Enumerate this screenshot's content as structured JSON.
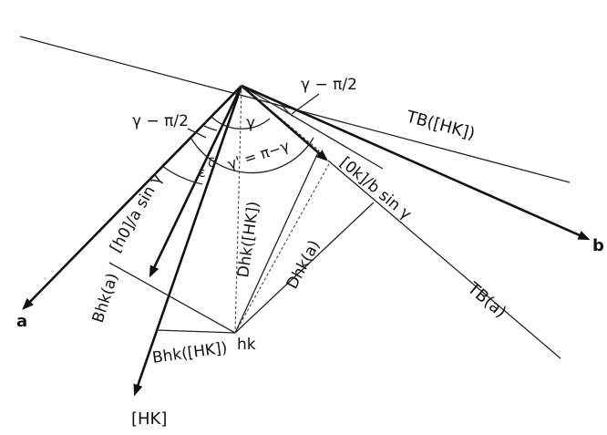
{
  "labels": {
    "gamma_minus_pi2_top": "γ − π/2",
    "gamma_minus_pi2_left": "γ − π/2",
    "gamma": "γ",
    "gamma_prime": "γ' = π−γ",
    "epsilon": "ε",
    "delta": "δ",
    "tb_hk": "TB([HK])",
    "tb_a": "TB(a)",
    "h0_over_a": "[h0]/a sin γ",
    "ok_over_b": "[0k]/b sin γ",
    "d_hk_HK": "Dhk([HK])",
    "d_hk_a": "Dhk(a)",
    "b_hk_a": "Bhk(a)",
    "b_hk_HK": "Bhk([HK])",
    "hk": "hk",
    "axis_a": "a",
    "axis_b": "b",
    "axis_HK": "[HK]"
  },
  "colors": {
    "ink": "#111111",
    "paper": "#ffffff"
  }
}
